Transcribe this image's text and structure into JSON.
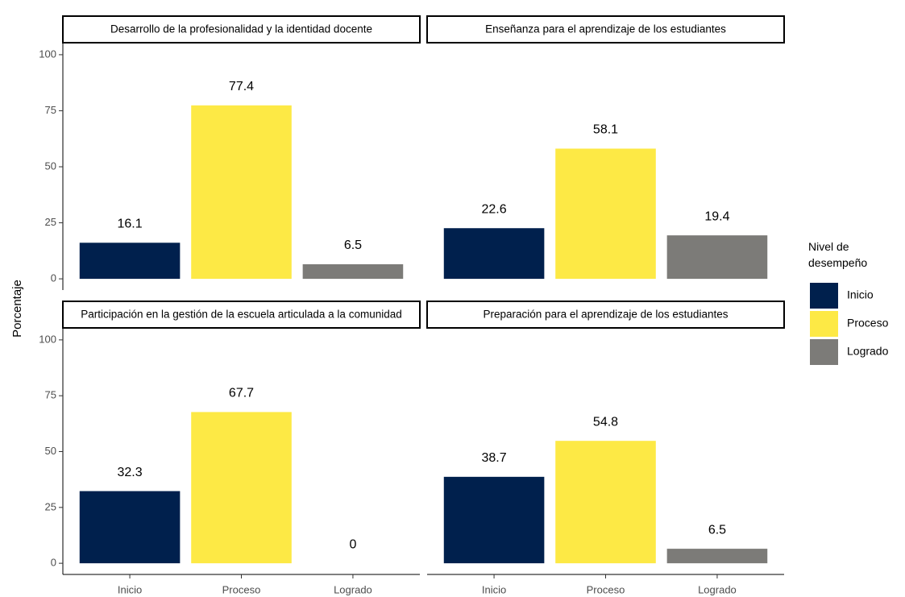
{
  "chart_data": {
    "type": "bar",
    "ylabel": "Porcentaje",
    "legend_title": "Nivel de desempeño",
    "categories": [
      "Inicio",
      "Proceso",
      "Logrado"
    ],
    "colors": [
      "#00204d",
      "#fde945",
      "#7c7b78"
    ],
    "ylim": [
      -5,
      105
    ],
    "yticks": [
      0,
      25,
      50,
      75,
      100
    ],
    "facets": [
      {
        "title": "Desarrollo de la profesionalidad y la identidad docente",
        "values": [
          16.1,
          77.4,
          6.5
        ]
      },
      {
        "title": "Enseñanza para el aprendizaje de los estudiantes",
        "values": [
          22.6,
          58.1,
          19.4
        ]
      },
      {
        "title": "Participación en la gestión de la escuela articulada a la comunidad",
        "values": [
          32.3,
          67.7,
          0
        ]
      },
      {
        "title": "Preparación para el aprendizaje de los estudiantes",
        "values": [
          38.7,
          54.8,
          6.5
        ]
      }
    ]
  }
}
